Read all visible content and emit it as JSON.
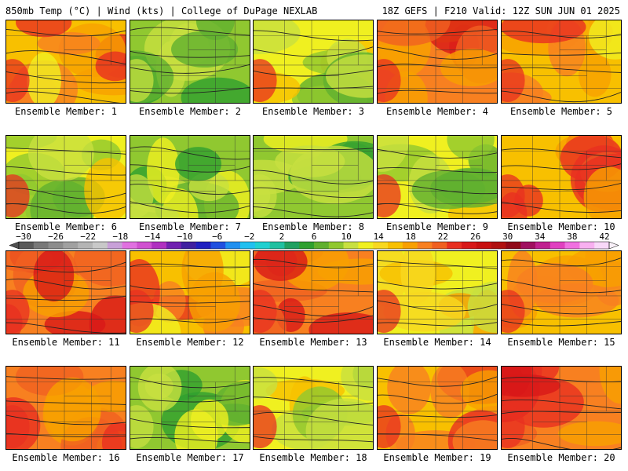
{
  "header": {
    "left": "850mb Temp (°C) | Wind (kts) | College of DuPage NEXLAB",
    "right": "18Z GEFS | F210 Valid: 12Z SUN JUN 01 2025"
  },
  "panels": [
    {
      "label": "Ensemble Member: 1",
      "scheme": "warm"
    },
    {
      "label": "Ensemble Member: 2",
      "scheme": "green"
    },
    {
      "label": "Ensemble Member: 3",
      "scheme": "mixed"
    },
    {
      "label": "Ensemble Member: 4",
      "scheme": "hot"
    },
    {
      "label": "Ensemble Member: 5",
      "scheme": "warm"
    },
    {
      "label": "Ensemble Member: 6",
      "scheme": "mixed"
    },
    {
      "label": "Ensemble Member: 7",
      "scheme": "green"
    },
    {
      "label": "Ensemble Member: 8",
      "scheme": "green"
    },
    {
      "label": "Ensemble Member: 9",
      "scheme": "mixed"
    },
    {
      "label": "Ensemble Member: 10",
      "scheme": "warm"
    },
    {
      "label": "Ensemble Member: 11",
      "scheme": "hot"
    },
    {
      "label": "Ensemble Member: 12",
      "scheme": "warm"
    },
    {
      "label": "Ensemble Member: 13",
      "scheme": "hot"
    },
    {
      "label": "Ensemble Member: 14",
      "scheme": "yellow"
    },
    {
      "label": "Ensemble Member: 15",
      "scheme": "warm"
    },
    {
      "label": "Ensemble Member: 16",
      "scheme": "hot"
    },
    {
      "label": "Ensemble Member: 17",
      "scheme": "green"
    },
    {
      "label": "Ensemble Member: 18",
      "scheme": "mixed"
    },
    {
      "label": "Ensemble Member: 19",
      "scheme": "warm"
    },
    {
      "label": "Ensemble Member: 20",
      "scheme": "hot"
    }
  ],
  "colorbar": {
    "labels": [
      "−30",
      "−26",
      "−22",
      "−18",
      "−14",
      "−10",
      "−6",
      "−2",
      "2",
      "6",
      "10",
      "14",
      "18",
      "22",
      "26",
      "30",
      "34",
      "38",
      "42"
    ],
    "colors": [
      "#5a5a5a",
      "#787878",
      "#8c8c8c",
      "#a0a0a0",
      "#b4b4b4",
      "#c8c8c8",
      "#c8a0d8",
      "#e070e0",
      "#d050d0",
      "#b030c0",
      "#7020b0",
      "#4020a0",
      "#2020c0",
      "#2050e0",
      "#2090f0",
      "#20c0f0",
      "#20d0d0",
      "#20c0a0",
      "#20a060",
      "#30a030",
      "#60b030",
      "#90c830",
      "#c8e040",
      "#f0f020",
      "#f8d820",
      "#f8c000",
      "#f8a000",
      "#f88020",
      "#f06020",
      "#e83020",
      "#d81818",
      "#c81010",
      "#b01010",
      "#900818",
      "#a01060",
      "#c02090",
      "#e040c0",
      "#f070e0",
      "#f8b0f0",
      "#f8d8f8"
    ]
  }
}
